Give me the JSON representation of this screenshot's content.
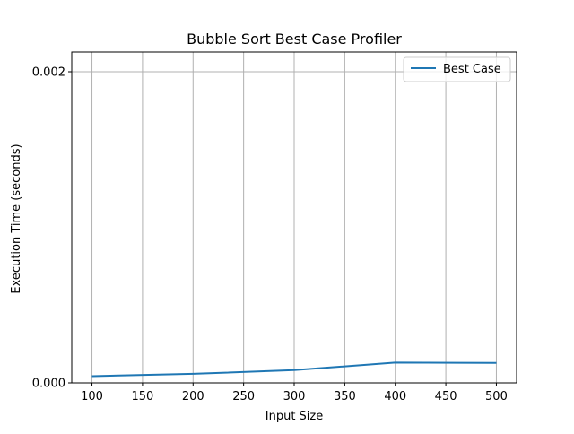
{
  "chart_data": {
    "type": "line",
    "title": "Bubble Sort Best Case Profiler",
    "xlabel": "Input Size",
    "ylabel": "Execution Time (seconds)",
    "xlim": [
      80,
      520
    ],
    "ylim": [
      0.0,
      0.002
    ],
    "x": [
      100,
      200,
      300,
      400,
      500
    ],
    "xticks": [
      100,
      150,
      200,
      250,
      300,
      350,
      400,
      450,
      500
    ],
    "xtick_labels": [
      "100",
      "150",
      "200",
      "250",
      "300",
      "350",
      "400",
      "450",
      "500"
    ],
    "yticks": [
      0.0,
      0.002
    ],
    "ytick_labels": [
      "0.000",
      "0.002"
    ],
    "grid": true,
    "legend_position": "top-right",
    "series": [
      {
        "name": "Best Case",
        "color": "#1f77b4",
        "values": [
          4.3e-05,
          5.8e-05,
          8.2e-05,
          0.00013,
          0.000128
        ]
      }
    ]
  }
}
